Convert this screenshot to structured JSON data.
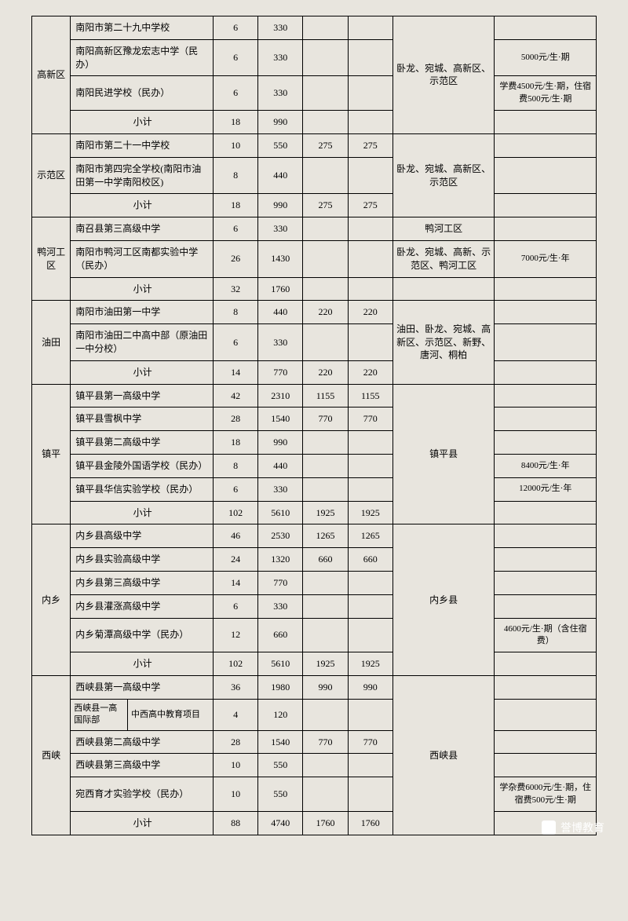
{
  "regions": [
    {
      "name": "高新区",
      "area": "卧龙、宛城、高新区、示范区",
      "rows": [
        {
          "school": "南阳市第二十九中学校",
          "n1": "6",
          "n2": "330",
          "n3": "",
          "n4": "",
          "fee": ""
        },
        {
          "school": "南阳高新区豫龙宏志中学（民办）",
          "n1": "6",
          "n2": "330",
          "n3": "",
          "n4": "",
          "fee": "5000元/生·期"
        },
        {
          "school": "南阳民进学校（民办）",
          "n1": "6",
          "n2": "330",
          "n3": "",
          "n4": "",
          "fee": "学费4500元/生·期，住宿费500元/生·期"
        },
        {
          "school": "小计",
          "n1": "18",
          "n2": "990",
          "n3": "",
          "n4": "",
          "fee": "",
          "subtotal": true
        }
      ]
    },
    {
      "name": "示范区",
      "area": "卧龙、宛城、高新区、示范区",
      "rows": [
        {
          "school": "南阳市第二十一中学校",
          "n1": "10",
          "n2": "550",
          "n3": "275",
          "n4": "275",
          "fee": ""
        },
        {
          "school": "南阳市第四完全学校(南阳市油田第一中学南阳校区)",
          "n1": "8",
          "n2": "440",
          "n3": "",
          "n4": "",
          "fee": ""
        },
        {
          "school": "小计",
          "n1": "18",
          "n2": "990",
          "n3": "275",
          "n4": "275",
          "fee": "",
          "subtotal": true
        }
      ]
    },
    {
      "name": "鸭河工区",
      "rows": [
        {
          "school": "南召县第三高级中学",
          "n1": "6",
          "n2": "330",
          "n3": "",
          "n4": "",
          "area": "鸭河工区",
          "fee": ""
        },
        {
          "school": "南阳市鸭河工区南都实验中学（民办）",
          "n1": "26",
          "n2": "1430",
          "n3": "",
          "n4": "",
          "area": "卧龙、宛城、高新、示范区、鸭河工区",
          "fee": "7000元/生·年"
        }
      ],
      "subtotal": {
        "school": "小计",
        "n1": "32",
        "n2": "1760",
        "n3": "",
        "n4": "",
        "fee": ""
      }
    },
    {
      "name": "油田",
      "area": "油田、卧龙、宛城、高新区、示范区、新野、唐河、桐柏",
      "rows": [
        {
          "school": "南阳市油田第一中学",
          "n1": "8",
          "n2": "440",
          "n3": "220",
          "n4": "220",
          "fee": ""
        },
        {
          "school": "南阳市油田二中高中部（原油田一中分校）",
          "n1": "6",
          "n2": "330",
          "n3": "",
          "n4": "",
          "fee": ""
        },
        {
          "school": "小计",
          "n1": "14",
          "n2": "770",
          "n3": "220",
          "n4": "220",
          "fee": "",
          "subtotal": true
        }
      ]
    },
    {
      "name": "镇平",
      "area": "镇平县",
      "rows": [
        {
          "school": "镇平县第一高级中学",
          "n1": "42",
          "n2": "2310",
          "n3": "1155",
          "n4": "1155",
          "fee": ""
        },
        {
          "school": "镇平县雪枫中学",
          "n1": "28",
          "n2": "1540",
          "n3": "770",
          "n4": "770",
          "fee": ""
        },
        {
          "school": "镇平县第二高级中学",
          "n1": "18",
          "n2": "990",
          "n3": "",
          "n4": "",
          "fee": ""
        },
        {
          "school": "镇平县金陵外国语学校（民办）",
          "n1": "8",
          "n2": "440",
          "n3": "",
          "n4": "",
          "fee": "8400元/生·年"
        },
        {
          "school": "镇平县华信实验学校（民办）",
          "n1": "6",
          "n2": "330",
          "n3": "",
          "n4": "",
          "fee": "12000元/生·年"
        },
        {
          "school": "小计",
          "n1": "102",
          "n2": "5610",
          "n3": "1925",
          "n4": "1925",
          "fee": "",
          "subtotal": true
        }
      ]
    },
    {
      "name": "内乡",
      "area": "内乡县",
      "rows": [
        {
          "school": "内乡县高级中学",
          "n1": "46",
          "n2": "2530",
          "n3": "1265",
          "n4": "1265",
          "fee": ""
        },
        {
          "school": "内乡县实验高级中学",
          "n1": "24",
          "n2": "1320",
          "n3": "660",
          "n4": "660",
          "fee": ""
        },
        {
          "school": "内乡县第三高级中学",
          "n1": "14",
          "n2": "770",
          "n3": "",
          "n4": "",
          "fee": ""
        },
        {
          "school": "内乡县灌涨高级中学",
          "n1": "6",
          "n2": "330",
          "n3": "",
          "n4": "",
          "fee": ""
        },
        {
          "school": "内乡菊潭高级中学（民办）",
          "n1": "12",
          "n2": "660",
          "n3": "",
          "n4": "",
          "fee": "4600元/生·期（含住宿费）"
        },
        {
          "school": "小计",
          "n1": "102",
          "n2": "5610",
          "n3": "1925",
          "n4": "1925",
          "fee": "",
          "subtotal": true
        }
      ]
    },
    {
      "name": "西峡",
      "area": "西峡县",
      "rows": [
        {
          "school": "西峡县第一高级中学",
          "n1": "36",
          "n2": "1980",
          "n3": "990",
          "n4": "990",
          "fee": ""
        },
        {
          "split": true,
          "schoolL": "西峡县一高国际部",
          "schoolR": "中西高中教育项目",
          "n1": "4",
          "n2": "120",
          "n3": "",
          "n4": "",
          "fee": ""
        },
        {
          "school": "西峡县第二高级中学",
          "n1": "28",
          "n2": "1540",
          "n3": "770",
          "n4": "770",
          "fee": ""
        },
        {
          "school": "西峡县第三高级中学",
          "n1": "10",
          "n2": "550",
          "n3": "",
          "n4": "",
          "fee": ""
        },
        {
          "school": "宛西育才实验学校（民办）",
          "n1": "10",
          "n2": "550",
          "n3": "",
          "n4": "",
          "fee": "学杂费6000元/生·期，住宿费500元/生·期"
        },
        {
          "school": "小计",
          "n1": "88",
          "n2": "4740",
          "n3": "1760",
          "n4": "1760",
          "fee": "",
          "subtotal": true
        }
      ]
    }
  ],
  "watermark": "誉博教育"
}
